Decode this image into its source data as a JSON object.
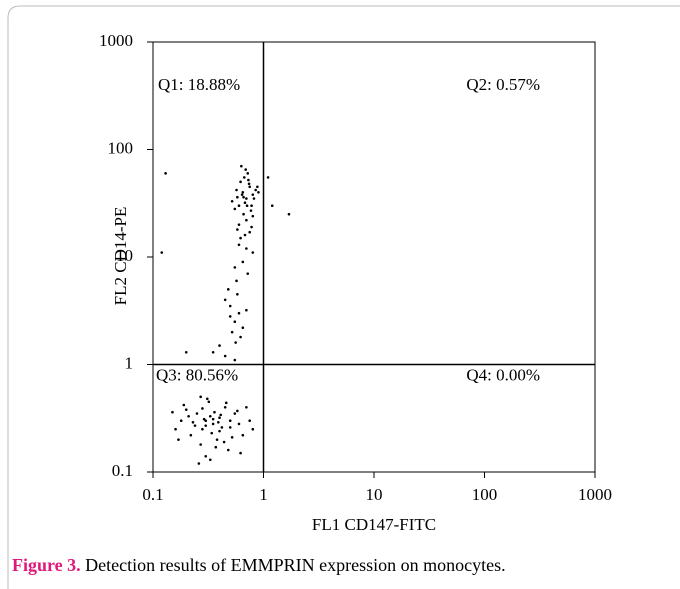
{
  "chart_data": {
    "type": "scatter",
    "x_label": "FL1 CD147-FITC",
    "y_label": "FL2 CD14-PE",
    "xlim": [
      0.1,
      1000
    ],
    "ylim": [
      0.1,
      1000
    ],
    "xticks": [
      0.1,
      1,
      10,
      100,
      1000
    ],
    "yticks": [
      0.1,
      1,
      10,
      100,
      1000
    ],
    "log_x": true,
    "log_y": true,
    "color": "#000000",
    "quadrant_x": 1,
    "quadrant_y": 1,
    "annotations": [
      "Q1: 18.88%",
      "Q2: 0.57%",
      "Q3: 80.56%",
      "Q4: 0.00%"
    ],
    "x": [
      0.3,
      0.25,
      0.35,
      0.4,
      0.28,
      0.22,
      0.45,
      0.5,
      0.32,
      0.38,
      0.18,
      0.2,
      0.27,
      0.33,
      0.42,
      0.55,
      0.6,
      0.65,
      0.7,
      0.48,
      0.3,
      0.24,
      0.36,
      0.44,
      0.16,
      0.19,
      0.29,
      0.31,
      0.34,
      0.39,
      0.41,
      0.52,
      0.58,
      0.62,
      0.26,
      0.23,
      0.37,
      0.46,
      0.75,
      0.8,
      0.21,
      0.17,
      0.15,
      0.28,
      0.33,
      0.35,
      0.4,
      0.3,
      0.27,
      0.5,
      0.6,
      0.65,
      0.7,
      0.75,
      0.8,
      0.55,
      0.62,
      0.68,
      0.72,
      0.85,
      0.58,
      0.66,
      0.78,
      0.9,
      0.63,
      0.7,
      0.74,
      0.82,
      0.6,
      0.67,
      0.52,
      0.77,
      0.88,
      0.64,
      0.71,
      0.69,
      0.57,
      0.8,
      0.73,
      0.66,
      0.58,
      0.62,
      0.7,
      0.75,
      0.55,
      0.65,
      0.6,
      0.72,
      0.8,
      0.68,
      0.78,
      0.57,
      0.45,
      0.5,
      0.55,
      0.6,
      0.48,
      0.65,
      0.52,
      0.58,
      0.62,
      0.7,
      0.5,
      0.56,
      0.35,
      0.4,
      0.45,
      0.55,
      0.13,
      0.12,
      1.1,
      1.7,
      0.2,
      1.2
    ],
    "values": [
      0.3,
      0.35,
      0.28,
      0.32,
      0.25,
      0.22,
      0.4,
      0.3,
      0.45,
      0.2,
      0.3,
      0.38,
      0.18,
      0.33,
      0.26,
      0.35,
      0.28,
      0.22,
      0.4,
      0.16,
      0.14,
      0.27,
      0.36,
      0.19,
      0.25,
      0.42,
      0.31,
      0.48,
      0.23,
      0.29,
      0.34,
      0.21,
      0.37,
      0.15,
      0.12,
      0.29,
      0.17,
      0.44,
      0.3,
      0.25,
      0.33,
      0.2,
      0.36,
      0.39,
      0.13,
      0.31,
      0.24,
      0.27,
      0.5,
      0.26,
      30,
      40,
      35,
      45,
      38,
      28,
      50,
      32,
      60,
      42,
      36,
      25,
      30,
      40,
      70,
      22,
      48,
      35,
      20,
      55,
      33,
      27,
      45,
      38,
      30,
      65,
      42,
      24,
      52,
      36,
      18,
      15,
      12,
      17,
      8,
      9,
      13,
      7,
      11,
      16,
      19,
      6,
      4,
      3.5,
      2.5,
      3,
      5,
      2.2,
      2,
      4.5,
      1.8,
      3.2,
      2.8,
      1.6,
      1.3,
      1.5,
      1.2,
      1.1,
      60,
      11,
      55,
      25,
      1.3,
      30
    ]
  },
  "caption": {
    "label": "Figure 3.",
    "text": "Detection results of EMMPRIN expression on monocytes."
  }
}
